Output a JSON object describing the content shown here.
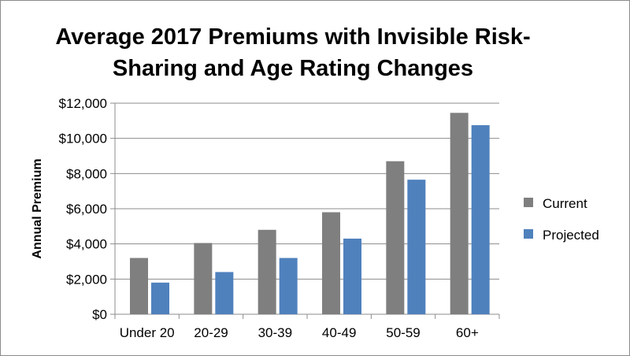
{
  "chart_data": {
    "type": "bar",
    "title_lines": [
      "Average 2017 Premiums with Invisible Risk-",
      "Sharing and Age Rating Changes"
    ],
    "xlabel": "",
    "ylabel": "Annual Premium",
    "categories": [
      "Under 20",
      "20-29",
      "30-39",
      "40-49",
      "50-59",
      "60+"
    ],
    "series": [
      {
        "name": "Current",
        "color": "#7f7f7f",
        "values": [
          3200,
          4050,
          4800,
          5800,
          8700,
          11450
        ]
      },
      {
        "name": "Projected",
        "color": "#4f81bd",
        "values": [
          1800,
          2400,
          3200,
          4300,
          7650,
          10750
        ]
      }
    ],
    "ylim": [
      0,
      12000
    ],
    "yticks": [
      0,
      2000,
      4000,
      6000,
      8000,
      10000,
      12000
    ],
    "ytick_labels": [
      "$0",
      "$2,000",
      "$4,000",
      "$6,000",
      "$8,000",
      "$10,000",
      "$12,000"
    ],
    "grid": true,
    "legend_position": "right"
  }
}
